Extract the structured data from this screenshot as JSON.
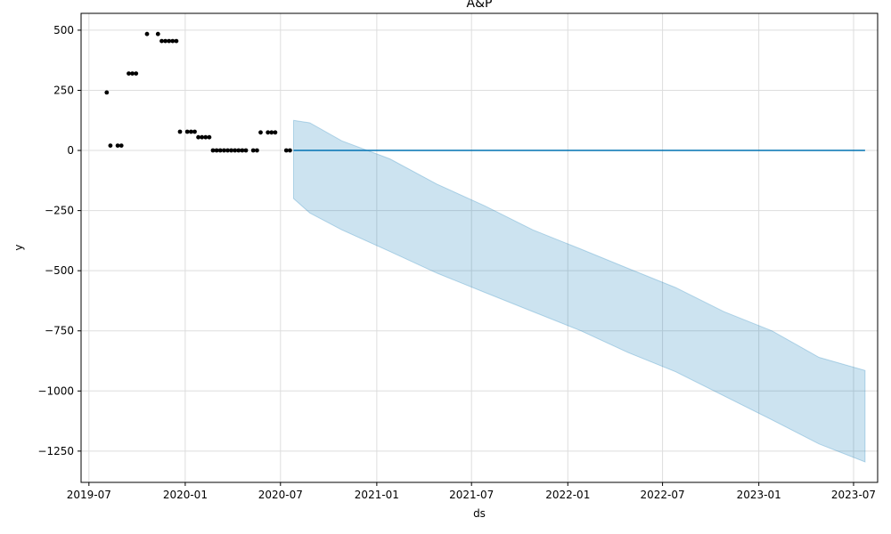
{
  "chart_data": {
    "type": "line",
    "title": "A&P",
    "xlabel": "ds",
    "ylabel": "y",
    "x_type": "date",
    "xlim": [
      "2019-06-16",
      "2023-08-16"
    ],
    "ylim": [
      -1380,
      570
    ],
    "x_ticks": [
      "2019-07",
      "2020-01",
      "2020-07",
      "2021-01",
      "2021-07",
      "2022-01",
      "2022-07",
      "2023-01",
      "2023-07"
    ],
    "y_ticks": [
      500,
      250,
      0,
      -250,
      -500,
      -750,
      -1000,
      -1250
    ],
    "grid": true,
    "colors": {
      "actual_points": "#000000",
      "forecast_line": "#0072b2",
      "uncertainty_band": "#0072b2"
    },
    "series": [
      {
        "type": "scatter",
        "points": [
          [
            "2019-08-04",
            241
          ],
          [
            "2019-08-11",
            20
          ],
          [
            "2019-08-25",
            20
          ],
          [
            "2019-09-01",
            20
          ],
          [
            "2019-09-15",
            320
          ],
          [
            "2019-09-22",
            320
          ],
          [
            "2019-09-29",
            320
          ],
          [
            "2019-10-20",
            484
          ],
          [
            "2019-11-10",
            484
          ],
          [
            "2019-11-17",
            455
          ],
          [
            "2019-11-24",
            455
          ],
          [
            "2019-12-01",
            455
          ],
          [
            "2019-12-08",
            455
          ],
          [
            "2019-12-15",
            455
          ],
          [
            "2019-12-22",
            78
          ],
          [
            "2020-01-05",
            78
          ],
          [
            "2020-01-12",
            78
          ],
          [
            "2020-01-19",
            78
          ],
          [
            "2020-01-26",
            55
          ],
          [
            "2020-02-02",
            55
          ],
          [
            "2020-02-09",
            55
          ],
          [
            "2020-02-16",
            55
          ],
          [
            "2020-02-23",
            0
          ],
          [
            "2020-03-01",
            0
          ],
          [
            "2020-03-08",
            0
          ],
          [
            "2020-03-15",
            0
          ],
          [
            "2020-03-22",
            0
          ],
          [
            "2020-03-29",
            0
          ],
          [
            "2020-04-05",
            0
          ],
          [
            "2020-04-12",
            0
          ],
          [
            "2020-04-19",
            0
          ],
          [
            "2020-04-26",
            0
          ],
          [
            "2020-05-10",
            0
          ],
          [
            "2020-05-17",
            0
          ],
          [
            "2020-05-24",
            75
          ],
          [
            "2020-06-07",
            75
          ],
          [
            "2020-06-14",
            75
          ],
          [
            "2020-06-21",
            75
          ],
          [
            "2020-07-12",
            0
          ],
          [
            "2020-07-19",
            0
          ]
        ]
      },
      {
        "type": "line",
        "points": [
          [
            "2020-07-26",
            0
          ],
          [
            "2023-07-23",
            0
          ]
        ]
      },
      {
        "type": "area",
        "x": [
          "2020-07-26",
          "2020-08-26",
          "2020-10-26",
          "2021-01-26",
          "2021-04-26",
          "2021-07-26",
          "2021-10-26",
          "2022-01-26",
          "2022-04-26",
          "2022-07-26",
          "2022-10-26",
          "2023-01-26",
          "2023-04-26",
          "2023-07-23"
        ],
        "upper": [
          125,
          115,
          40,
          -35,
          -140,
          -230,
          -330,
          -410,
          -490,
          -570,
          -670,
          -750,
          -860,
          -915
        ],
        "lower": [
          -200,
          -260,
          -330,
          -420,
          -510,
          -590,
          -670,
          -750,
          -840,
          -920,
          -1020,
          -1120,
          -1220,
          -1295
        ]
      }
    ]
  }
}
